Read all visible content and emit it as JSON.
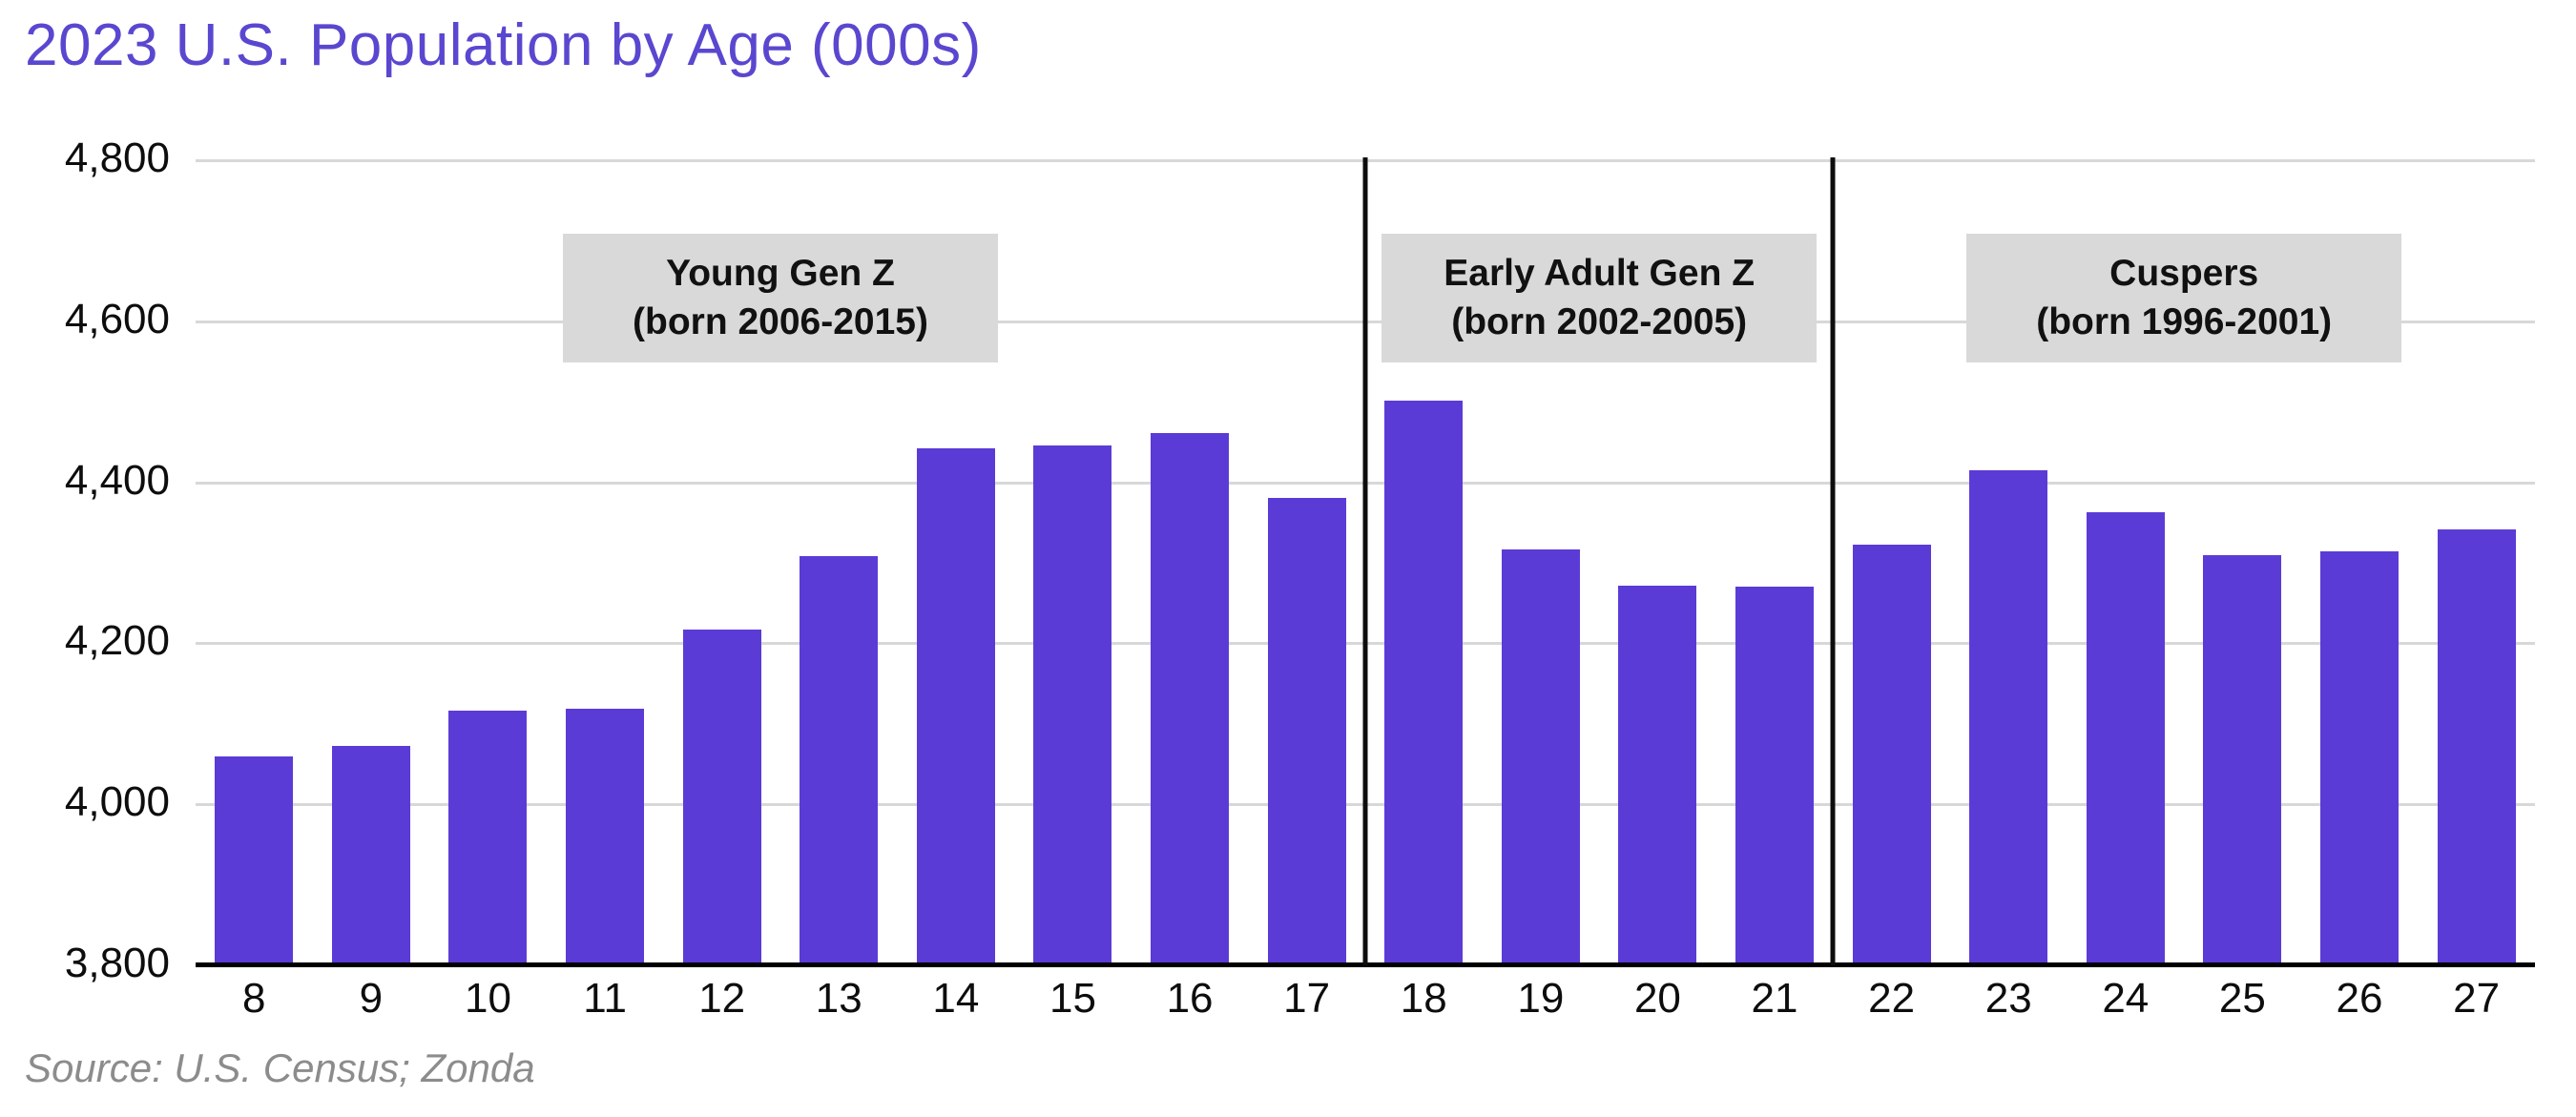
{
  "title": {
    "text": "2023 U.S. Population by Age (000s)",
    "color": "#5A47D0"
  },
  "source": {
    "text": "Source: U.S. Census; Zonda"
  },
  "chart_data": {
    "type": "bar",
    "title": "2023 U.S. Population by Age (000s)",
    "xlabel": "",
    "ylabel": "",
    "categories": [
      "8",
      "9",
      "10",
      "11",
      "12",
      "13",
      "14",
      "15",
      "16",
      "17",
      "18",
      "19",
      "20",
      "21",
      "22",
      "23",
      "24",
      "25",
      "26",
      "27"
    ],
    "values": [
      4060,
      4072,
      4116,
      4119,
      4217,
      4308,
      4442,
      4446,
      4461,
      4381,
      4501,
      4317,
      4271,
      4270,
      4322,
      4415,
      4363,
      4309,
      4314,
      4342
    ],
    "ylim": [
      3800,
      4800
    ],
    "yticks": [
      4800,
      4600,
      4400,
      4200,
      4000,
      3800
    ],
    "ytick_labels": [
      "4,800",
      "4,600",
      "4,400",
      "4,200",
      "4,000",
      "3,800"
    ],
    "grid": "horizontal",
    "legend": "none",
    "bar_color": "#5B3BD6",
    "annotations": [
      {
        "line1": "Young Gen Z",
        "line2": "(born 2006-2015)",
        "span": [
          0,
          9
        ]
      },
      {
        "line1": "Early Adult Gen Z",
        "line2": "(born 2002-2005)",
        "span": [
          10,
          13
        ]
      },
      {
        "line1": "Cuspers",
        "line2": "(born 1996-2001)",
        "span": [
          14,
          19
        ]
      }
    ],
    "dividers_after_index": [
      9,
      13
    ],
    "colors": {
      "grid_line": "#D8D8D8",
      "axis_line": "#000000",
      "divider_line": "#0D0D0D",
      "annotation_bg": "#D9D9D9",
      "source_text": "#8C8C8C",
      "tick_text": "#0D0D0D"
    }
  }
}
